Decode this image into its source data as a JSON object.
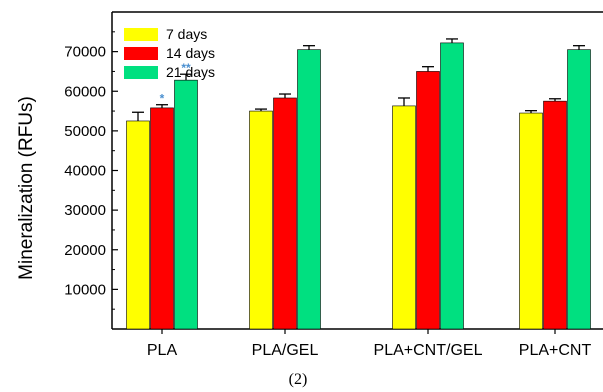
{
  "caption": "(2)",
  "chart_data": {
    "type": "bar",
    "title": "",
    "xlabel": "",
    "ylabel": "Mineralization (RFUs)",
    "ylim": [
      0,
      80000
    ],
    "yticks": [
      10000,
      20000,
      30000,
      40000,
      50000,
      60000,
      70000
    ],
    "categories": [
      "PLA",
      "PLA/GEL",
      "PLA+CNT/GEL",
      "PLA+CNT"
    ],
    "legend_position": "top-left",
    "grid": false,
    "series": [
      {
        "name": "7 days",
        "color": "#ffff00",
        "values": [
          52500,
          55000,
          56300,
          54500
        ],
        "errors": [
          2200,
          500,
          2000,
          600
        ]
      },
      {
        "name": "14 days",
        "color": "#ff0000",
        "values": [
          55800,
          58300,
          65000,
          57500
        ],
        "errors": [
          800,
          1000,
          1200,
          600
        ]
      },
      {
        "name": "21 days",
        "color": "#00e080",
        "values": [
          62800,
          70500,
          72200,
          70500
        ],
        "errors": [
          1500,
          1000,
          1000,
          1000
        ]
      }
    ],
    "annotations": [
      {
        "category": "PLA",
        "series": "14 days",
        "text": "*",
        "color": "#4a8fd0"
      },
      {
        "category": "PLA",
        "series": "21 days",
        "text": "**",
        "color": "#4a8fd0"
      }
    ]
  }
}
